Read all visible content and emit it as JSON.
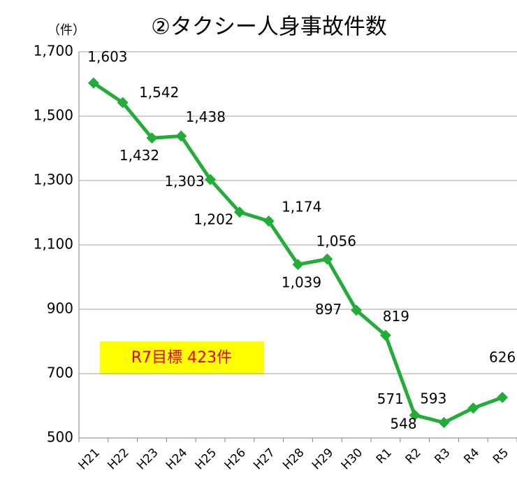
{
  "chart_data": {
    "type": "line",
    "title": "②タクシー人身事故件数",
    "y_unit_label": "（件）",
    "annotation": "R7目標 423件",
    "categories": [
      "H21",
      "H22",
      "H23",
      "H24",
      "H25",
      "H26",
      "H27",
      "H28",
      "H29",
      "H30",
      "R1",
      "R2",
      "R3",
      "R4",
      "R5"
    ],
    "series": [
      {
        "name": "タクシー人身事故件数",
        "color": "#22ac38",
        "values": [
          1603,
          1542,
          1432,
          1438,
          1303,
          1202,
          1174,
          1039,
          1056,
          897,
          819,
          571,
          548,
          593,
          626
        ],
        "value_labels": [
          "1,603",
          "1,542",
          "1,432",
          "1,438",
          "1,303",
          "1,202",
          "1,174",
          "1,039",
          "1,056",
          "897",
          "819",
          "571",
          "548",
          "593",
          "626"
        ]
      }
    ],
    "ylim": [
      500,
      1700
    ],
    "yticks": [
      500,
      700,
      900,
      {
        "value": 1100,
        "label": "1,100"
      },
      {
        "value": 1300,
        "label": "1,300"
      },
      {
        "value": 1500,
        "label": "1,500"
      },
      {
        "value": 1700,
        "label": "1,700"
      }
    ],
    "grid": true
  }
}
